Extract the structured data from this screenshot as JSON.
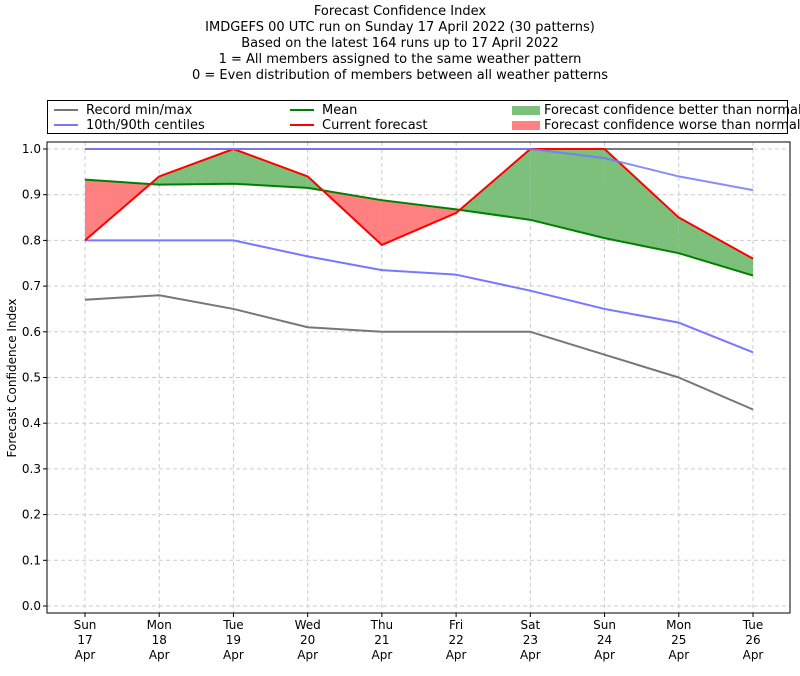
{
  "chart_data": {
    "type": "line",
    "title_lines": [
      "Forecast Confidence Index",
      "IMDGEFS 00 UTC run on Sunday 17 April 2022 (30 patterns)",
      "Based on the latest 164 runs up to 17 April 2022",
      "1 = All members assigned to the same weather pattern",
      "0 = Even distribution of members between all weather patterns"
    ],
    "xlabel": "",
    "ylabel": "Forecast Confidence Index",
    "ylim": [
      0.0,
      1.0
    ],
    "yticks": [
      "0.0",
      "0.1",
      "0.2",
      "0.3",
      "0.4",
      "0.5",
      "0.6",
      "0.7",
      "0.8",
      "0.9",
      "1.0"
    ],
    "grid": true,
    "legend_position": "top",
    "categories": [
      {
        "day": "Sun",
        "date": "17",
        "month": "Apr"
      },
      {
        "day": "Mon",
        "date": "18",
        "month": "Apr"
      },
      {
        "day": "Tue",
        "date": "19",
        "month": "Apr"
      },
      {
        "day": "Wed",
        "date": "20",
        "month": "Apr"
      },
      {
        "day": "Thu",
        "date": "21",
        "month": "Apr"
      },
      {
        "day": "Fri",
        "date": "22",
        "month": "Apr"
      },
      {
        "day": "Sat",
        "date": "23",
        "month": "Apr"
      },
      {
        "day": "Sun",
        "date": "24",
        "month": "Apr"
      },
      {
        "day": "Mon",
        "date": "25",
        "month": "Apr"
      },
      {
        "day": "Tue",
        "date": "26",
        "month": "Apr"
      }
    ],
    "series": [
      {
        "name": "Record max",
        "legend": "Record min/max",
        "color": "#777777",
        "values": [
          1.0,
          1.0,
          1.0,
          1.0,
          1.0,
          1.0,
          1.0,
          1.0,
          1.0,
          1.0
        ]
      },
      {
        "name": "Record min",
        "legend": "Record min/max",
        "color": "#777777",
        "values": [
          0.67,
          0.68,
          0.65,
          0.61,
          0.6,
          0.6,
          0.6,
          0.55,
          0.5,
          0.43
        ]
      },
      {
        "name": "90th centile",
        "legend": "10th/90th centiles",
        "color": "#7777ff",
        "values": [
          1.0,
          1.0,
          1.0,
          1.0,
          1.0,
          1.0,
          1.0,
          0.98,
          0.94,
          0.91
        ]
      },
      {
        "name": "10th centile",
        "legend": "10th/90th centiles",
        "color": "#7777ff",
        "values": [
          0.8,
          0.8,
          0.8,
          0.765,
          0.735,
          0.725,
          0.69,
          0.65,
          0.62,
          0.555
        ]
      },
      {
        "name": "Mean",
        "legend": "Mean",
        "color": "#008000",
        "values": [
          0.933,
          0.922,
          0.924,
          0.915,
          0.888,
          0.868,
          0.845,
          0.805,
          0.772,
          0.723
        ]
      },
      {
        "name": "Current forecast",
        "legend": "Current forecast",
        "color": "#ff0000",
        "values": [
          0.8,
          0.94,
          1.0,
          0.94,
          0.79,
          0.86,
          1.0,
          1.0,
          0.85,
          0.76
        ]
      }
    ],
    "fill_legend": [
      {
        "label": "Forecast confidence better than normal",
        "color": "#7cc07c"
      },
      {
        "label": "Forecast confidence worse than normal",
        "color": "#ff8080"
      }
    ]
  },
  "legend": {
    "items": [
      {
        "label": "Record min/max",
        "color": "#777777",
        "kind": "line"
      },
      {
        "label": "10th/90th centiles",
        "color": "#7777ff",
        "kind": "line"
      },
      {
        "label": "Mean",
        "color": "#008000",
        "kind": "line"
      },
      {
        "label": "Current forecast",
        "color": "#ff0000",
        "kind": "line"
      },
      {
        "label": "Forecast confidence better than normal",
        "color": "#7cc07c",
        "kind": "patch"
      },
      {
        "label": "Forecast confidence worse than normal",
        "color": "#ff8080",
        "kind": "patch"
      }
    ]
  }
}
